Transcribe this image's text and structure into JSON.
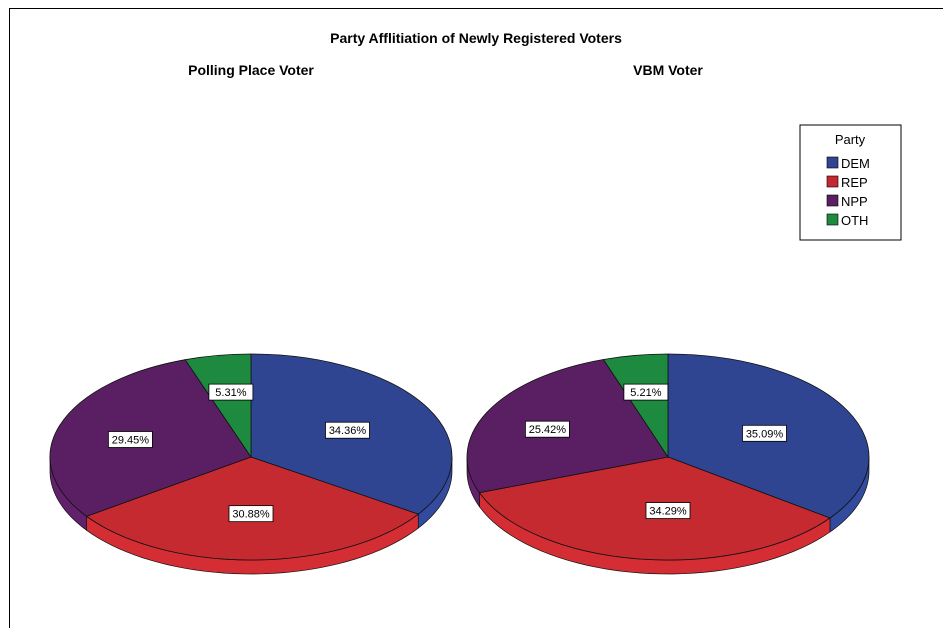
{
  "chart_data": {
    "type": "pie",
    "title": "Party Afflitiation of Newly Registered Voters",
    "legend": {
      "title": "Party",
      "position": "top-right",
      "entries": [
        "DEM",
        "REP",
        "NPP",
        "OTH"
      ]
    },
    "colors": {
      "DEM": "#2f4592",
      "REP": "#c52a30",
      "NPP": "#5a1f63",
      "OTH": "#1e8a3f"
    },
    "charts": [
      {
        "subtitle": "Polling Place Voter",
        "slices": [
          {
            "name": "DEM",
            "value": 34.36,
            "label": "34.36%"
          },
          {
            "name": "REP",
            "value": 30.88,
            "label": "30.88%"
          },
          {
            "name": "NPP",
            "value": 29.45,
            "label": "29.45%"
          },
          {
            "name": "OTH",
            "value": 5.31,
            "label": "5.31%"
          }
        ]
      },
      {
        "subtitle": "VBM Voter",
        "slices": [
          {
            "name": "DEM",
            "value": 35.09,
            "label": "35.09%"
          },
          {
            "name": "REP",
            "value": 34.29,
            "label": "34.29%"
          },
          {
            "name": "NPP",
            "value": 25.42,
            "label": "25.42%"
          },
          {
            "name": "OTH",
            "value": 5.21,
            "label": "5.21%"
          }
        ]
      }
    ]
  }
}
